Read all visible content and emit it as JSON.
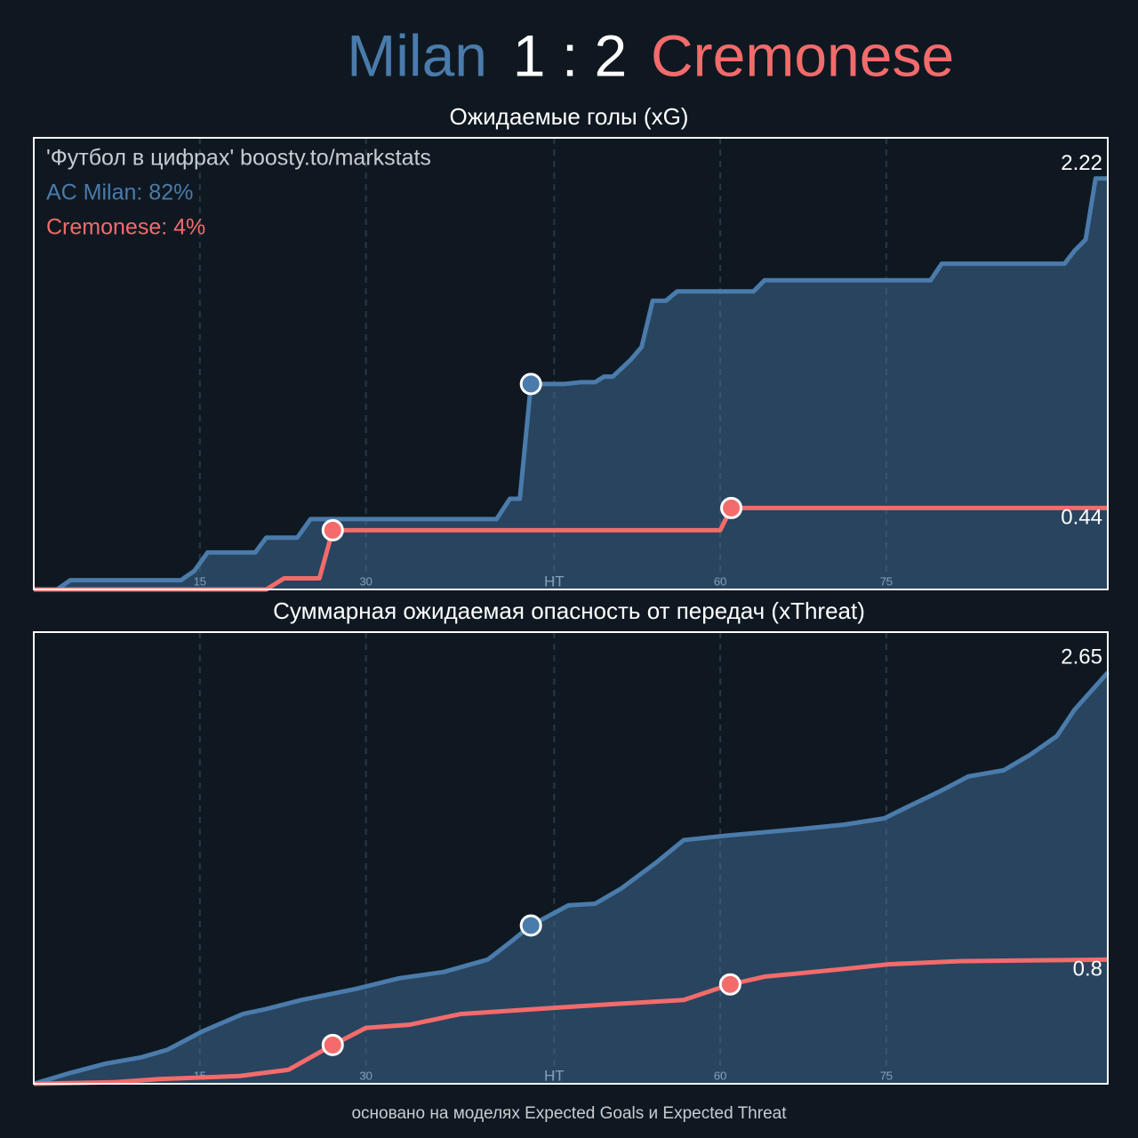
{
  "header": {
    "home": "Milan",
    "score": "1 : 2",
    "away": "Cremonese"
  },
  "footer": "основано на моделях Expected Goals и Expected Threat",
  "chart_data": [
    {
      "type": "line",
      "title": "Ожидаемые голы (xG)",
      "annotations": [
        "'Футбол в цифрах' boosty.to/markstats",
        "AC Milan: 82%",
        "Cremonese: 4%"
      ],
      "xlim": [
        0,
        97
      ],
      "ylim": [
        0,
        2.44
      ],
      "xticks": [
        15,
        30,
        {
          "value": 47,
          "label": "HT"
        },
        {
          "value": 62,
          "label": "60"
        },
        {
          "value": 77,
          "label": "75"
        }
      ],
      "grid": true,
      "series": [
        {
          "name": "AC Milan",
          "color": "#4a7bab",
          "area": true,
          "x": [
            0,
            2.1,
            3.3,
            13.3,
            14.5,
            15.7,
            20,
            21,
            23.8,
            25,
            41.8,
            43,
            43.9,
            44.9,
            47.9,
            49.5,
            50.7,
            51.5,
            52.3,
            53.9,
            54.9,
            55.9,
            57.1,
            58.1,
            65,
            66,
            81,
            82,
            93.1,
            94,
            95,
            95.9,
            97
          ],
          "values": [
            0,
            0,
            0.05,
            0.05,
            0.1,
            0.2,
            0.2,
            0.28,
            0.28,
            0.38,
            0.38,
            0.49,
            0.49,
            1.11,
            1.11,
            1.12,
            1.12,
            1.15,
            1.15,
            1.24,
            1.31,
            1.56,
            1.56,
            1.61,
            1.61,
            1.67,
            1.67,
            1.76,
            1.76,
            1.83,
            1.89,
            2.22,
            2.22
          ],
          "goals": [
            {
              "x": 44.9,
              "y": 1.11
            }
          ]
        },
        {
          "name": "Cremonese",
          "color": "#f36b6b",
          "area": false,
          "x": [
            0,
            21,
            22.6,
            25.8,
            27,
            62,
            63,
            97
          ],
          "values": [
            0,
            0,
            0.06,
            0.06,
            0.32,
            0.32,
            0.44,
            0.44
          ],
          "goals": [
            {
              "x": 27,
              "y": 0.32
            },
            {
              "x": 63,
              "y": 0.44
            }
          ]
        }
      ]
    },
    {
      "type": "line",
      "title": "Суммарная ожидаемая опасность от передач (xThreat)",
      "annotations": [],
      "xlim": [
        0,
        97
      ],
      "ylim": [
        0,
        2.91
      ],
      "xticks": [
        15,
        30,
        {
          "value": 47,
          "label": "HT"
        },
        {
          "value": 62,
          "label": "60"
        },
        {
          "value": 77,
          "label": "75"
        }
      ],
      "grid": true,
      "series": [
        {
          "name": "AC Milan",
          "color": "#4a7bab",
          "area": true,
          "x": [
            0,
            3.3,
            6.5,
            9.7,
            12.1,
            15.3,
            18.9,
            20.9,
            24.2,
            29,
            33,
            37,
            41,
            43,
            44.9,
            48.3,
            50.7,
            53.1,
            56.3,
            58.7,
            62.7,
            69,
            73.2,
            76.8,
            78.8,
            82,
            84.4,
            87.6,
            90,
            92.4,
            94,
            97
          ],
          "values": [
            0,
            0.07,
            0.13,
            0.17,
            0.22,
            0.34,
            0.45,
            0.48,
            0.54,
            0.61,
            0.68,
            0.72,
            0.8,
            0.91,
            1.02,
            1.15,
            1.16,
            1.26,
            1.43,
            1.57,
            1.6,
            1.64,
            1.67,
            1.71,
            1.78,
            1.89,
            1.98,
            2.02,
            2.12,
            2.24,
            2.41,
            2.65
          ],
          "goals": [
            {
              "x": 44.9,
              "y": 1.02
            }
          ]
        },
        {
          "name": "Cremonese",
          "color": "#f36b6b",
          "area": false,
          "x": [
            0,
            7.3,
            11.3,
            18.6,
            23,
            27,
            30,
            33.9,
            38.6,
            45,
            51.5,
            58.7,
            62.9,
            66,
            73.2,
            77.2,
            83.6,
            97
          ],
          "values": [
            0,
            0.01,
            0.03,
            0.05,
            0.09,
            0.25,
            0.36,
            0.38,
            0.45,
            0.48,
            0.51,
            0.54,
            0.64,
            0.69,
            0.74,
            0.77,
            0.79,
            0.8
          ],
          "goals": [
            {
              "x": 27,
              "y": 0.25
            },
            {
              "x": 62.9,
              "y": 0.64
            }
          ]
        }
      ]
    }
  ]
}
